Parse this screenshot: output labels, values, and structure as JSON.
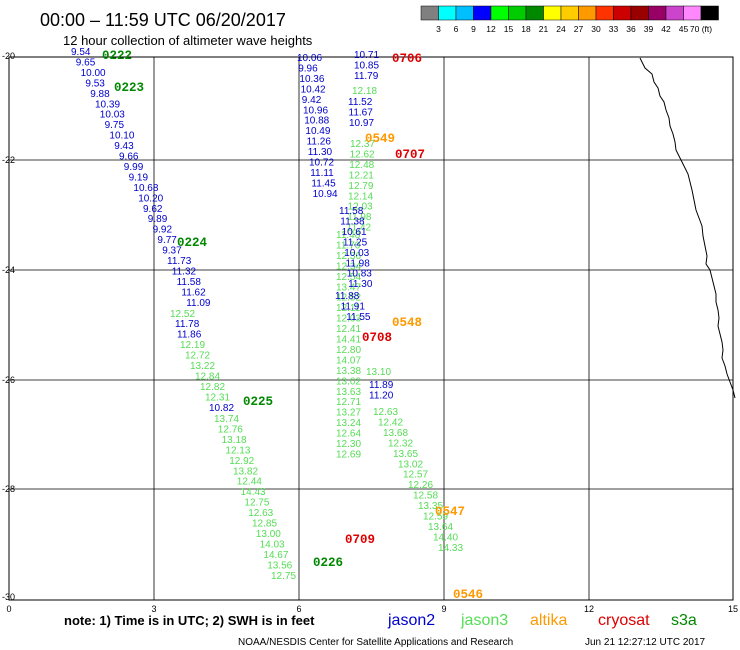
{
  "header": {
    "title": "00:00 – 11:59 UTC 06/20/2017",
    "subtitle": "12 hour collection of altimeter wave heights"
  },
  "legend": {
    "colors": [
      "#808080",
      "#00ffff",
      "#00bfff",
      "#0000ff",
      "#00ff00",
      "#00cc00",
      "#008800",
      "#ffff00",
      "#ffcc00",
      "#ff9900",
      "#ff3300",
      "#cc0000",
      "#990000",
      "#990066",
      "#cc44cc",
      "#ff88ff",
      "#000000"
    ],
    "labels": [
      "3",
      "6",
      "9",
      "12",
      "15",
      "18",
      "21",
      "24",
      "27",
      "30",
      "33",
      "36",
      "39",
      "42",
      "45",
      "70 (ft)"
    ]
  },
  "axes": {
    "y_labels": [
      "-20",
      "-22",
      "-24",
      "-26",
      "-28",
      "-30"
    ],
    "x_labels": [
      "0",
      "3",
      "6",
      "9",
      "12",
      "15"
    ]
  },
  "track_colors": {
    "jason2": "#0000cc",
    "jason3": "#55dd55",
    "altika": "#ff9900",
    "cryosat": "#dd0000",
    "s3a": "#008800"
  },
  "tracks": [
    {
      "sat": "jason2",
      "values": [
        "9.54",
        "9.65",
        "10.00",
        "9.53",
        "9.88",
        "10.39",
        "10.03",
        "9.75",
        "10.10",
        "9.43",
        "9.66",
        "9.99",
        "9.19",
        "10.68",
        "10.20",
        "9.62",
        "9.89",
        "9.92",
        "9.77",
        "9.37",
        "11.73",
        "11.32",
        "11.58",
        "11.62",
        "11.09"
      ]
    },
    {
      "sat": "jason3",
      "values": [
        "12.52"
      ]
    },
    {
      "sat": "jason2",
      "values": [
        "11.78",
        "11.86"
      ]
    },
    {
      "sat": "jason3",
      "values": [
        "12.19",
        "12.72",
        "13.22",
        "12.84",
        "12.82",
        "12.31"
      ]
    },
    {
      "sat": "jason2",
      "values": [
        "10.82"
      ]
    },
    {
      "sat": "jason3",
      "values": [
        "13.74",
        "12.76",
        "13.18",
        "12.13",
        "12.92",
        "13.82",
        "12.44",
        "14.43",
        "12.75",
        "12.63",
        "12.85",
        "13.00",
        "14.03",
        "14.67",
        "13.56",
        "12.75"
      ]
    },
    {
      "sat": "jason2",
      "values": [
        "10.06",
        "9.96",
        "10.36",
        "10.42",
        "9.42",
        "10.96",
        "10.88",
        "10.49",
        "11.26",
        "11.30",
        "10.72",
        "11.11",
        "11.45",
        "10.94"
      ]
    },
    {
      "sat": "jason3",
      "values": [
        "11.48",
        "11.70",
        "12.36",
        "12.34",
        "12.54",
        "13.47",
        "12.52",
        "12.11",
        "12.03",
        "12.41",
        "14.41",
        "12.80",
        "14.07",
        "13.38",
        "13.02",
        "13.63",
        "12.71",
        "13.27",
        "13.24",
        "12.64",
        "12.30",
        "12.69"
      ]
    },
    {
      "sat": "jason2",
      "values": [
        "11.88",
        "11.91",
        "11.55"
      ]
    },
    {
      "sat": "jason2",
      "values": [
        "10.71",
        "10.85",
        "11.79"
      ]
    },
    {
      "sat": "jason3",
      "values": [
        "12.18"
      ]
    },
    {
      "sat": "jason2",
      "values": [
        "11.52",
        "11.67",
        "10.97"
      ]
    },
    {
      "sat": "jason3",
      "values": [
        "12.37",
        "12.62",
        "12.48",
        "12.21",
        "12.79",
        "12.14",
        "12.03",
        "11.98",
        "11.42"
      ]
    },
    {
      "sat": "jason2",
      "values": [
        "11.58",
        "11.38",
        "10.61",
        "11.25",
        "10.03",
        "11.98",
        "10.83",
        "11.30"
      ]
    },
    {
      "sat": "jason3",
      "values": [
        "13.10"
      ]
    },
    {
      "sat": "jason2",
      "values": [
        "11.89",
        "11.20"
      ]
    },
    {
      "sat": "jason3",
      "values": [
        "12.63",
        "12.42",
        "13.68",
        "12.32",
        "13.65",
        "13.02",
        "12.57",
        "12.26",
        "12.58",
        "13.35",
        "12.59",
        "13.64",
        "14.40",
        "14.33"
      ]
    }
  ],
  "pass_tags": [
    {
      "sat": "s3a",
      "text": "0222"
    },
    {
      "sat": "s3a",
      "text": "0223"
    },
    {
      "sat": "s3a",
      "text": "0224"
    },
    {
      "sat": "s3a",
      "text": "0225"
    },
    {
      "sat": "s3a",
      "text": "0226"
    },
    {
      "sat": "cryosat",
      "text": "0706"
    },
    {
      "sat": "altika",
      "text": "0549"
    },
    {
      "sat": "cryosat",
      "text": "0707"
    },
    {
      "sat": "altika",
      "text": "0548"
    },
    {
      "sat": "cryosat",
      "text": "0708"
    },
    {
      "sat": "cryosat",
      "text": "0709"
    },
    {
      "sat": "altika",
      "text": "0547"
    },
    {
      "sat": "altika",
      "text": "0546"
    }
  ],
  "footer": {
    "note": "note:  1) Time is in UTC;  2) SWH is in feet",
    "satellites": [
      {
        "key": "jason2",
        "label": "jason2"
      },
      {
        "key": "jason3",
        "label": "jason3"
      },
      {
        "key": "altika",
        "label": "altika"
      },
      {
        "key": "cryosat",
        "label": "cryosat"
      },
      {
        "key": "s3a",
        "label": "s3a"
      }
    ],
    "credit": "NOAA/NESDIS Center for Satellite Applications and Research",
    "timestamp": "Jun 21 12:27:12 UTC 2017"
  }
}
